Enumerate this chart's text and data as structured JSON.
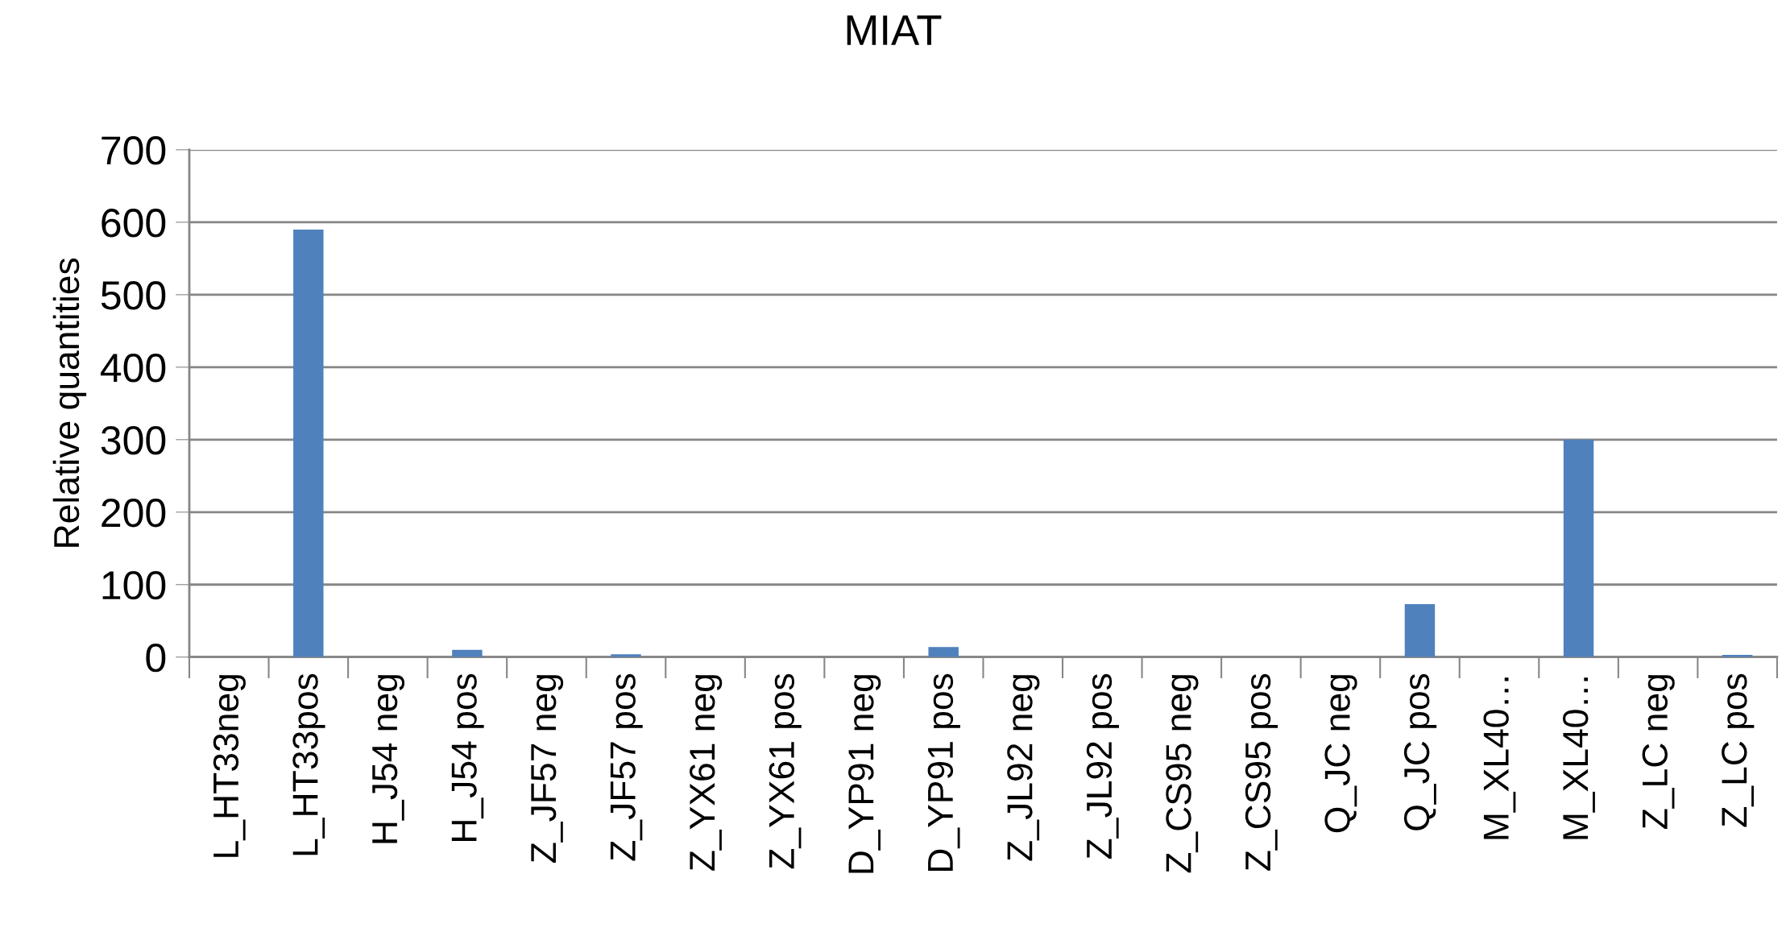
{
  "chart_data": {
    "type": "bar",
    "title": "MIAT",
    "ylabel": "Relative quantities",
    "categories": [
      "L_HT33neg",
      "L_HT33pos",
      "H_J54 neg",
      "H_J54 pos",
      "Z_JF57 neg",
      "Z_JF57 pos",
      "Z_YX61 neg",
      "Z_YX61 pos",
      "D_YP91 neg",
      "D_YP91 pos",
      "Z_JL92 neg",
      "Z_JL92 pos",
      "Z_CS95 neg",
      "Z_CS95 pos",
      "Q_JC neg",
      "Q_JC pos",
      "M_XL40…",
      "M_XL40…",
      "Z_LC neg",
      "Z_LC pos"
    ],
    "values": [
      0,
      590,
      0,
      10,
      0,
      4,
      0,
      0,
      0,
      14,
      0,
      0,
      0,
      0,
      0,
      73,
      0,
      300,
      0,
      3
    ],
    "color": "#4f81bd",
    "ylim": [
      0,
      700
    ],
    "yticks": [
      0,
      100,
      200,
      300,
      400,
      500,
      600,
      700
    ],
    "grid": "y"
  }
}
